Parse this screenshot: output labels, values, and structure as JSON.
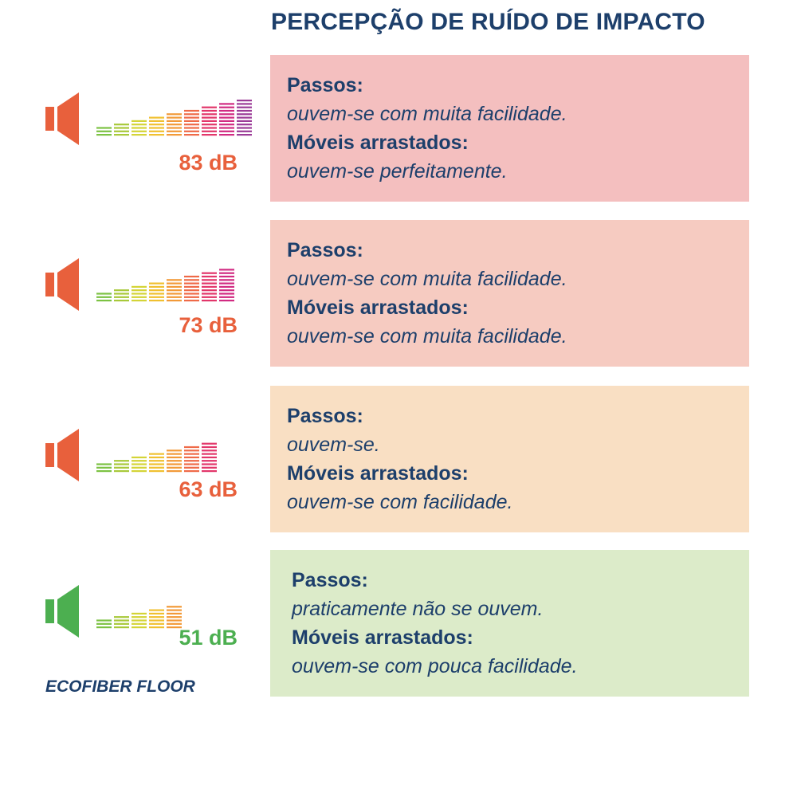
{
  "title": "PERCEPÇÃO DE RUÍDO DE IMPACTO",
  "brand": "ECOFIBER FLOOR",
  "colors": {
    "heading": "#1d3f6b",
    "speaker_loud": "#e8603c",
    "speaker_quiet": "#4caf50"
  },
  "rows": [
    {
      "level": "83 dB",
      "level_color": "#e8603c",
      "speaker_icon": "speaker-icon",
      "speaker_color": "#e8603c",
      "bar_count": 9,
      "panel_bg": "#f4bfbf",
      "footsteps_label": "Passos:",
      "footsteps_text": "ouvem-se com muita facilidade.",
      "furniture_label": "Móveis arrastados:",
      "furniture_text": "ouvem-se perfeitamente."
    },
    {
      "level": "73 dB",
      "level_color": "#e8603c",
      "speaker_icon": "speaker-icon",
      "speaker_color": "#e8603c",
      "bar_count": 8,
      "panel_bg": "#f6cbc1",
      "footsteps_label": "Passos:",
      "footsteps_text": "ouvem-se com muita facilidade.",
      "furniture_label": "Móveis arrastados:",
      "furniture_text": "ouvem-se com muita facilidade."
    },
    {
      "level": "63 dB",
      "level_color": "#e8603c",
      "speaker_icon": "speaker-icon",
      "speaker_color": "#e8603c",
      "bar_count": 7,
      "panel_bg": "#f9dfc3",
      "footsteps_label": "Passos:",
      "footsteps_text": "ouvem-se.",
      "furniture_label": "Móveis arrastados:",
      "furniture_text": "ouvem-se com facilidade."
    },
    {
      "level": "51 dB",
      "level_color": "#4caf50",
      "speaker_icon": "speaker-icon",
      "speaker_color": "#4caf50",
      "bar_count": 5,
      "panel_bg": "#dcebc9",
      "footsteps_label": "Passos:",
      "footsteps_text": "praticamente não se ouvem.",
      "furniture_label": "Móveis arrastados:",
      "furniture_text": "ouvem-se com pouca facilidade."
    }
  ]
}
